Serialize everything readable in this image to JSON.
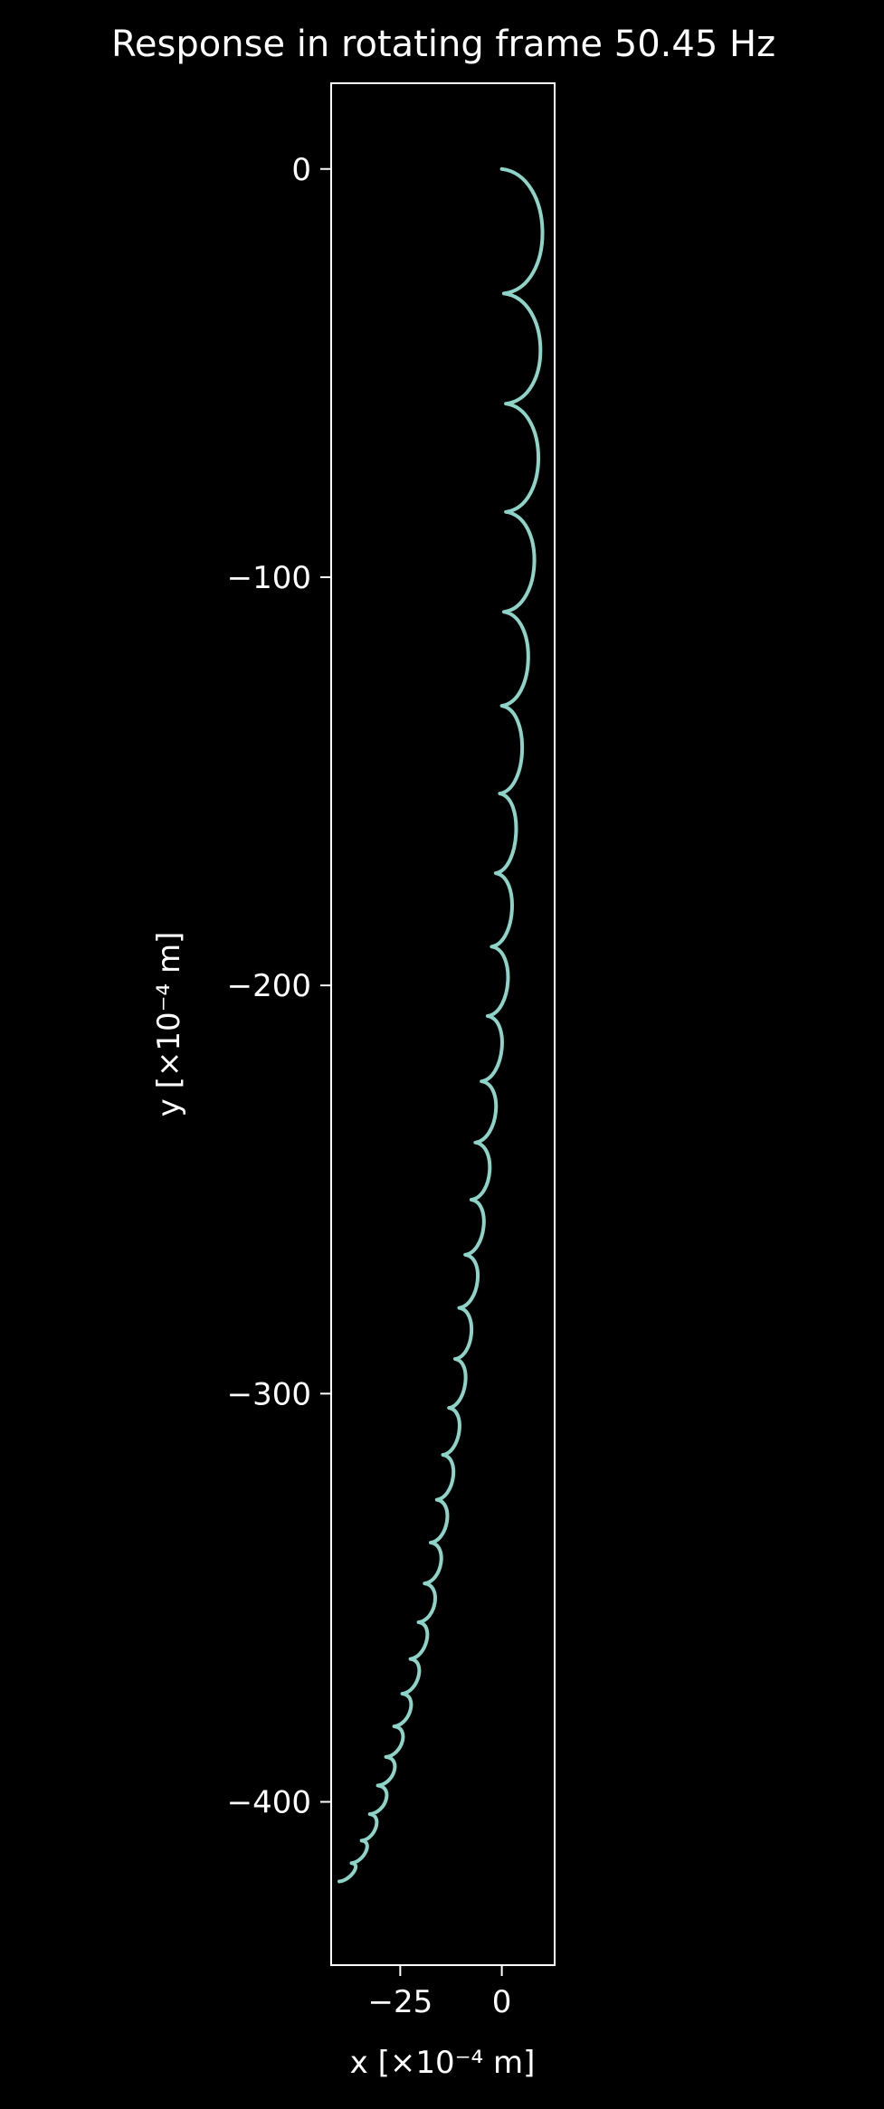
{
  "chart_data": {
    "type": "line",
    "title": "Response in rotating frame 50.45 Hz",
    "xlabel": "x [×10⁻⁴ m]",
    "ylabel": "y [×10⁻⁴ m]",
    "xlim": [
      -42,
      13
    ],
    "ylim": [
      -440,
      21
    ],
    "xticks": [
      {
        "value": -25,
        "label": "−25"
      },
      {
        "value": 0,
        "label": "0"
      }
    ],
    "yticks": [
      {
        "value": 0,
        "label": "0"
      },
      {
        "value": -100,
        "label": "−100"
      },
      {
        "value": -200,
        "label": "−200"
      },
      {
        "value": -300,
        "label": "−300"
      },
      {
        "value": -400,
        "label": "−400"
      }
    ],
    "grid": false,
    "series": [
      {
        "color": "#8dd3c7",
        "cusps_y": [
          0,
          -30.5,
          -57.5,
          -84,
          -108.5,
          -131.5,
          -153,
          -172.5,
          -190.5,
          -207.5,
          -223.5,
          -238.5,
          -252.5,
          -266,
          -279,
          -291.5,
          -303.5,
          -315,
          -326,
          -336.5,
          -346.5,
          -356,
          -365,
          -373.5,
          -381.5,
          -389,
          -396,
          -403,
          -409.5,
          -415,
          -419.5
        ],
        "cusps_x": [
          0,
          0.5,
          1,
          1,
          0.5,
          0,
          -0.5,
          -1.5,
          -2.5,
          -3.5,
          -5,
          -6.5,
          -7.5,
          -9,
          -10.5,
          -11.5,
          -13,
          -14.5,
          -16,
          -17.5,
          -19,
          -20.5,
          -22.5,
          -24.5,
          -26.5,
          -28.5,
          -30.5,
          -32.5,
          -34.5,
          -37,
          -40
        ],
        "bulge_peak_x": [
          10,
          9.5,
          9,
          8,
          6.5,
          5,
          3.5,
          2.5,
          1.5,
          0,
          -1.5,
          -3,
          -4.5,
          -6,
          -7.5,
          -9,
          -10.5,
          -12,
          -13.5,
          -15,
          -16.5,
          -18.5,
          -20.5,
          -22.5,
          -24.5,
          -26.5,
          -28.5,
          -31,
          -33.5,
          -36.5
        ]
      }
    ]
  }
}
